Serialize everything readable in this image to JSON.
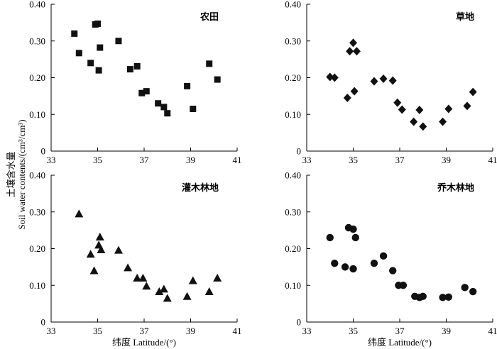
{
  "figure": {
    "ylabel_cn": "土壤含水量",
    "ylabel_en": "Soil water contents/(cm³/cm³)",
    "xlabel": "纬度 Latitude/(°)"
  },
  "chart_data": [
    {
      "type": "scatter",
      "title": "农田",
      "marker": "square",
      "xlim": [
        33,
        41
      ],
      "ylim": [
        0,
        0.4
      ],
      "xticks": [
        "33",
        "35",
        "37",
        "39",
        "41"
      ],
      "yticks": [
        "0",
        "0.10",
        "0.20",
        "0.30",
        "0.40"
      ],
      "x": [
        34.0,
        34.2,
        34.7,
        34.9,
        35.0,
        35.05,
        35.1,
        35.9,
        36.4,
        36.7,
        36.9,
        37.1,
        37.6,
        37.85,
        38.0,
        38.85,
        39.1,
        39.8,
        40.15
      ],
      "y": [
        0.32,
        0.267,
        0.24,
        0.345,
        0.347,
        0.22,
        0.282,
        0.3,
        0.223,
        0.231,
        0.158,
        0.163,
        0.13,
        0.12,
        0.103,
        0.177,
        0.115,
        0.238,
        0.195
      ]
    },
    {
      "type": "scatter",
      "title": "草地",
      "marker": "diamond",
      "xlim": [
        33,
        41
      ],
      "ylim": [
        0,
        0.4
      ],
      "xticks": [
        "33",
        "35",
        "37",
        "39",
        "41"
      ],
      "yticks": [
        "0",
        "0.10",
        "0.20",
        "0.30",
        "0.40"
      ],
      "x": [
        34.0,
        34.2,
        34.75,
        34.85,
        35.0,
        35.05,
        35.15,
        35.9,
        36.3,
        36.7,
        36.9,
        37.1,
        37.6,
        37.85,
        38.0,
        38.85,
        39.1,
        39.9,
        40.15
      ],
      "y": [
        0.202,
        0.2,
        0.145,
        0.272,
        0.295,
        0.163,
        0.272,
        0.19,
        0.197,
        0.192,
        0.132,
        0.113,
        0.08,
        0.112,
        0.067,
        0.08,
        0.115,
        0.123,
        0.161
      ]
    },
    {
      "type": "scatter",
      "title": "灌木林地",
      "marker": "triangle",
      "xlim": [
        33,
        41
      ],
      "ylim": [
        0,
        0.4
      ],
      "xticks": [
        "33",
        "35",
        "37",
        "39",
        "41"
      ],
      "yticks": [
        "0",
        "0.10",
        "0.20",
        "0.30",
        "0.40"
      ],
      "x": [
        34.2,
        34.7,
        34.85,
        35.05,
        35.1,
        35.15,
        35.9,
        36.3,
        36.7,
        36.95,
        37.1,
        37.65,
        37.85,
        38.0,
        38.85,
        39.1,
        39.8,
        40.15
      ],
      "y": [
        0.295,
        0.185,
        0.14,
        0.21,
        0.232,
        0.197,
        0.196,
        0.148,
        0.12,
        0.12,
        0.098,
        0.083,
        0.09,
        0.065,
        0.07,
        0.113,
        0.083,
        0.12
      ]
    },
    {
      "type": "scatter",
      "title": "乔木林地",
      "marker": "circle",
      "xlim": [
        33,
        41
      ],
      "ylim": [
        0,
        0.4
      ],
      "xticks": [
        "33",
        "35",
        "37",
        "39",
        "41"
      ],
      "yticks": [
        "0",
        "0.10",
        "0.20",
        "0.30",
        "0.40"
      ],
      "x": [
        34.0,
        34.2,
        34.65,
        34.8,
        35.0,
        35.0,
        35.1,
        35.9,
        36.3,
        36.7,
        36.95,
        37.15,
        37.65,
        37.85,
        38.0,
        38.85,
        39.1,
        39.8,
        40.15
      ],
      "y": [
        0.23,
        0.16,
        0.15,
        0.257,
        0.253,
        0.145,
        0.23,
        0.16,
        0.18,
        0.14,
        0.1,
        0.1,
        0.07,
        0.067,
        0.07,
        0.067,
        0.068,
        0.094,
        0.083
      ]
    }
  ]
}
